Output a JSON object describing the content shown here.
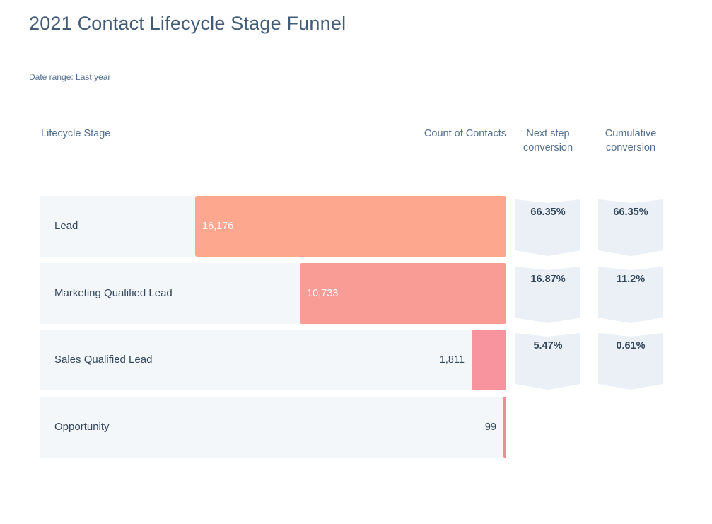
{
  "title": "2021 Contact Lifecycle Stage Funnel",
  "date_range": "Date range: Last year",
  "headers": {
    "stage": "Lifecycle Stage",
    "count": "Count of Contacts",
    "next_step": "Next step conversion",
    "cumulative": "Cumulative conversion"
  },
  "colors": {
    "row_background": "#f4f7fa",
    "chevron_background": "#eaf0f6",
    "bar_colors": [
      "#fda78e",
      "#fa9c96",
      "#f7949e",
      "#ef8a97"
    ]
  },
  "chart_data": {
    "type": "bar",
    "orientation": "horizontal-funnel",
    "categories": [
      "Lead",
      "Marketing Qualified Lead",
      "Sales Qualified Lead",
      "Opportunity"
    ],
    "values": [
      16176,
      10733,
      1811,
      99
    ],
    "value_labels": [
      "16,176",
      "10,733",
      "1,811",
      "99"
    ],
    "next_step_conversion": [
      "66.35%",
      "16.87%",
      "5.47%"
    ],
    "cumulative_conversion": [
      "66.35%",
      "11.2%",
      "0.61%"
    ],
    "title": "2021 Contact Lifecycle Stage Funnel",
    "xlabel": "Count of Contacts",
    "ylabel": "Lifecycle Stage",
    "grid": false
  }
}
